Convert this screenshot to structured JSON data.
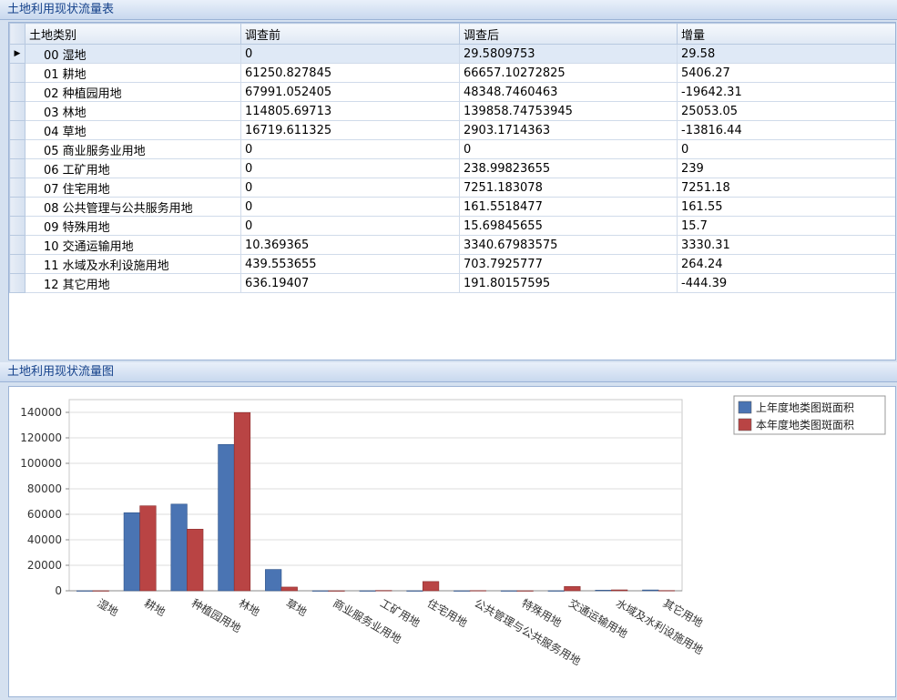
{
  "table_panel": {
    "title": "土地利用现状流量表",
    "columns": [
      "土地类别",
      "调查前",
      "调查后",
      "增量"
    ],
    "rows": [
      [
        "00 湿地",
        "0",
        "29.5809753",
        "29.58"
      ],
      [
        "01 耕地",
        "61250.827845",
        "66657.10272825",
        "5406.27"
      ],
      [
        "02 种植园用地",
        "67991.052405",
        "48348.7460463",
        "-19642.31"
      ],
      [
        "03 林地",
        "114805.69713",
        "139858.74753945",
        "25053.05"
      ],
      [
        "04 草地",
        "16719.611325",
        "2903.1714363",
        "-13816.44"
      ],
      [
        "05 商业服务业用地",
        "0",
        "0",
        "0"
      ],
      [
        "06 工矿用地",
        "0",
        "238.99823655",
        "239"
      ],
      [
        "07 住宅用地",
        "0",
        "7251.183078",
        "7251.18"
      ],
      [
        "08 公共管理与公共服务用地",
        "0",
        "161.5518477",
        "161.55"
      ],
      [
        "09 特殊用地",
        "0",
        "15.69845655",
        "15.7"
      ],
      [
        "10 交通运输用地",
        "10.369365",
        "3340.67983575",
        "3330.31"
      ],
      [
        "11 水域及水利设施用地",
        "439.553655",
        "703.7925777",
        "264.24"
      ],
      [
        "12 其它用地",
        "636.19407",
        "191.80157595",
        "-444.39"
      ]
    ]
  },
  "chart_data": {
    "type": "bar",
    "title": "土地利用现状流量图",
    "categories": [
      "湿地",
      "耕地",
      "种植园用地",
      "林地",
      "草地",
      "商业服务业用地",
      "工矿用地",
      "住宅用地",
      "公共管理与公共服务用地",
      "特殊用地",
      "交通运输用地",
      "水域及水利设施用地",
      "其它用地"
    ],
    "series": [
      {
        "name": "上年度地类图斑面积",
        "color": "#4a74b3",
        "values": [
          0,
          61250.827845,
          67991.052405,
          114805.69713,
          16719.611325,
          0,
          0,
          0,
          0,
          0,
          10.369365,
          439.553655,
          636.19407
        ]
      },
      {
        "name": "本年度地类图斑面积",
        "color": "#b94444",
        "values": [
          29.5809753,
          66657.10272825,
          48348.7460463,
          139858.74753945,
          2903.1714363,
          0,
          238.99823655,
          7251.183078,
          161.5518477,
          15.69845655,
          3340.67983575,
          703.7925777,
          191.80157595
        ]
      }
    ],
    "ylim": [
      0,
      150000
    ],
    "yticks": [
      0,
      20000,
      40000,
      60000,
      80000,
      100000,
      120000,
      140000
    ],
    "grid": true,
    "legend": "top-right"
  }
}
